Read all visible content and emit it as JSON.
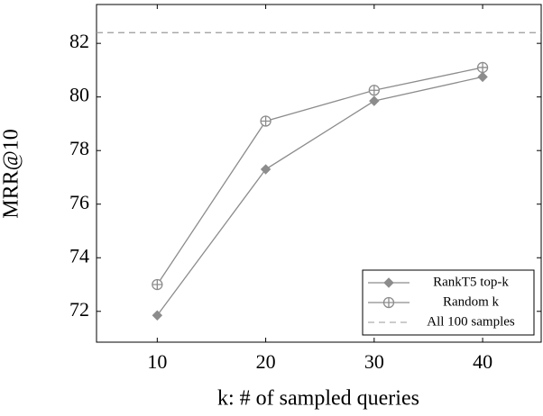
{
  "chart_data": {
    "type": "line",
    "x_label": "k: # of sampled queries",
    "y_label": "MRR@10",
    "x": [
      10,
      20,
      30,
      40
    ],
    "series": [
      {
        "name": "RankT5 top-k",
        "color": "#8c8c8c",
        "marker": "diamond",
        "values": [
          71.85,
          77.3,
          79.85,
          80.75
        ]
      },
      {
        "name": "Random k",
        "color": "#8c8c8c",
        "marker": "circle-plus",
        "values": [
          73.0,
          79.1,
          80.25,
          81.1
        ]
      }
    ],
    "reference_line": {
      "name": "All 100 samples",
      "value": 82.4,
      "color": "#999999",
      "style": "dashed"
    },
    "xlim": [
      4.4,
      45.4
    ],
    "ylim": [
      70.85,
      83.45
    ],
    "xticks": [
      10,
      20,
      30,
      40
    ],
    "yticks": [
      72,
      74,
      76,
      78,
      80,
      82
    ],
    "legend": "lower-right"
  }
}
